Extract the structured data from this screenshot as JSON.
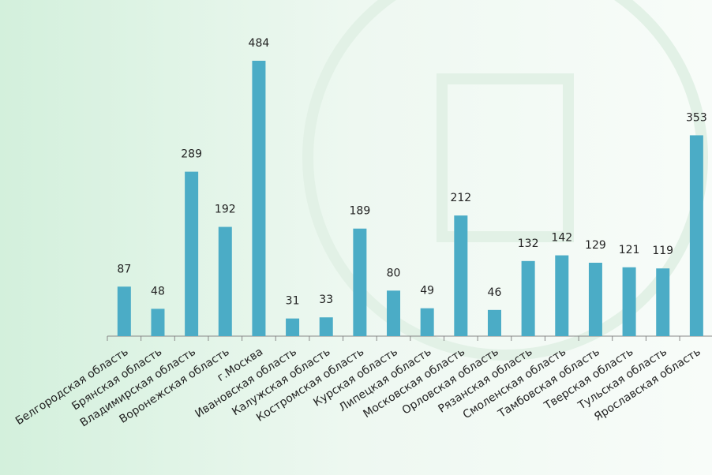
{
  "chart_data": {
    "type": "bar",
    "categories": [
      "Белгородская область",
      "Брянская область",
      "Владимирская область",
      "Воронежская область",
      "г.Москва",
      "Ивановская область",
      "Калужская область",
      "Костромская область",
      "Курская область",
      "Липецкая область",
      "Московская область",
      "Орловская область",
      "Рязанская область",
      "Смоленская область",
      "Тамбовская область",
      "Тверская область",
      "Тульская область",
      "Ярославская область"
    ],
    "values": [
      87,
      48,
      289,
      192,
      484,
      31,
      33,
      189,
      80,
      49,
      212,
      46,
      132,
      142,
      129,
      121,
      119,
      353
    ],
    "color": "#4bacc6"
  }
}
